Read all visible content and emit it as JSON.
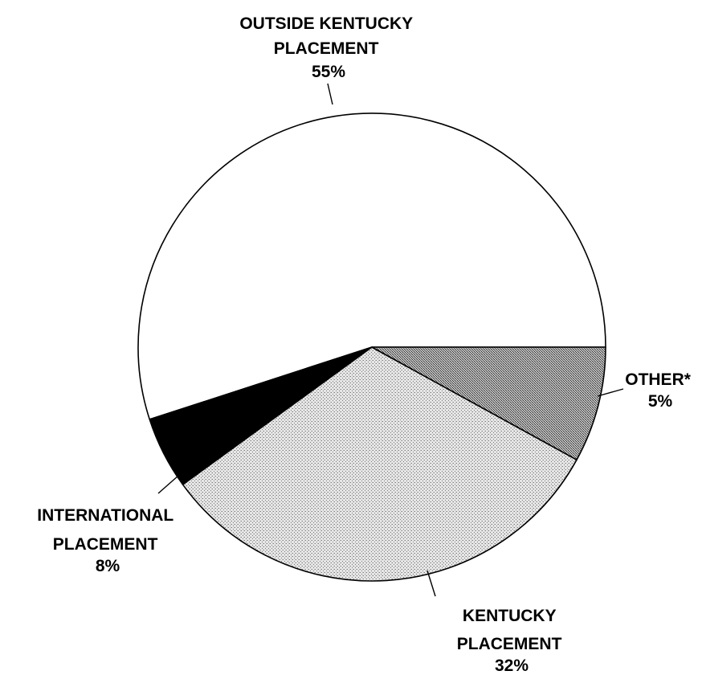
{
  "chart_data": {
    "type": "pie",
    "slices": [
      {
        "label_lines": [
          "OUTSIDE KENTUCKY",
          "PLACEMENT"
        ],
        "value_label": "55%",
        "value": 55,
        "fill": "#ffffff",
        "pattern": "none"
      },
      {
        "label_lines": [
          "OTHER*"
        ],
        "value_label": "5%",
        "value": 5,
        "fill": "#000000",
        "pattern": "solid"
      },
      {
        "label_lines": [
          "KENTUCKY",
          "PLACEMENT"
        ],
        "value_label": "32%",
        "value": 32,
        "fill": "#dcdcdc",
        "pattern": "light-stipple"
      },
      {
        "label_lines": [
          "INTERNATIONAL",
          "PLACEMENT"
        ],
        "value_label": "8%",
        "value": 8,
        "fill": "#9a9a9a",
        "pattern": "dark-stipple"
      }
    ],
    "start_angle_deg": 0,
    "direction": "clockwise-from-east"
  }
}
